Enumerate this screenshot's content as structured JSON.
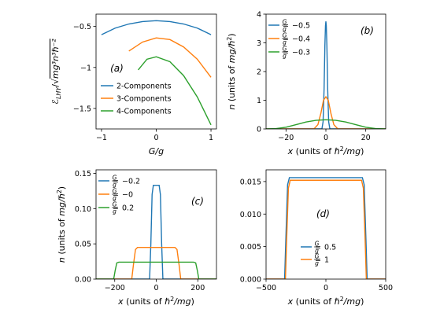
{
  "colors": {
    "blue": "#1f77b4",
    "orange": "#ff7f0e",
    "green": "#2ca02c"
  },
  "chart_data": [
    {
      "type": "line",
      "panel_label": "(a)",
      "xlabel": "G/g",
      "ylabel": "ℰ_LHY/√(mg³n³ℏ⁻²)",
      "ylabel_parts": {
        "main": "ℰ",
        "sub": "LHY",
        "rest": "/√",
        "radicand": "mg³n³ℏ⁻²"
      },
      "xlim": [
        -1.1,
        1.1
      ],
      "ylim": [
        -1.75,
        -0.35
      ],
      "xticks": [
        -1,
        0,
        1
      ],
      "yticks": [
        -1.5,
        -1.0,
        -0.5
      ],
      "legend_position": "lower-left",
      "series": [
        {
          "name": "2-Components",
          "color": "#1f77b4",
          "x": [
            -1,
            -0.75,
            -0.5,
            -0.25,
            0,
            0.25,
            0.5,
            0.75,
            1
          ],
          "y": [
            -0.6,
            -0.52,
            -0.47,
            -0.44,
            -0.43,
            -0.44,
            -0.47,
            -0.52,
            -0.6
          ]
        },
        {
          "name": "3-Components",
          "color": "#ff7f0e",
          "x": [
            -0.5,
            -0.25,
            0,
            0.25,
            0.5,
            0.75,
            1
          ],
          "y": [
            -0.8,
            -0.69,
            -0.64,
            -0.66,
            -0.75,
            -0.9,
            -1.12
          ]
        },
        {
          "name": "4-Components",
          "color": "#2ca02c",
          "x": [
            -0.33,
            -0.17,
            0,
            0.25,
            0.5,
            0.75,
            1
          ],
          "y": [
            -1.03,
            -0.9,
            -0.87,
            -0.93,
            -1.1,
            -1.36,
            -1.7
          ]
        }
      ]
    },
    {
      "type": "line",
      "panel_label": "(b)",
      "xlabel": "x (units of ℏ²/mg)",
      "ylabel": "n (units of mg/ℏ²)",
      "xlim": [
        -30,
        30
      ],
      "ylim": [
        0,
        4
      ],
      "xticks": [
        -20,
        0,
        20
      ],
      "yticks": [
        0,
        1,
        2,
        3,
        4
      ],
      "legend_position": "upper-left",
      "series": [
        {
          "value": "−0.5",
          "color": "#1f77b4",
          "x": [
            -30,
            -2,
            -1.4,
            -0.9,
            -0.5,
            -0.2,
            0,
            0.2,
            0.5,
            0.9,
            1.4,
            2,
            30
          ],
          "y": [
            0,
            0,
            0.25,
            1.4,
            2.9,
            3.6,
            3.75,
            3.6,
            2.9,
            1.4,
            0.25,
            0,
            0
          ]
        },
        {
          "value": "−0.4",
          "color": "#ff7f0e",
          "x": [
            -30,
            -6,
            -4,
            -2.5,
            -1.2,
            0,
            1.2,
            2.5,
            4,
            6,
            30
          ],
          "y": [
            0,
            0,
            0.15,
            0.55,
            1.0,
            1.12,
            1.0,
            0.55,
            0.15,
            0,
            0
          ]
        },
        {
          "value": "−0.3",
          "color": "#2ca02c",
          "x": [
            -30,
            -25,
            -20,
            -15,
            -10,
            -5,
            0,
            5,
            10,
            15,
            20,
            25,
            30
          ],
          "y": [
            0,
            0.01,
            0.06,
            0.15,
            0.24,
            0.3,
            0.32,
            0.3,
            0.24,
            0.15,
            0.06,
            0.01,
            0
          ]
        }
      ]
    },
    {
      "type": "line",
      "panel_label": "(c)",
      "xlabel": "x (units of ℏ²/mg)",
      "ylabel": "n (units of mg/ℏ²)",
      "xlim": [
        -290,
        290
      ],
      "ylim": [
        0,
        0.155
      ],
      "xticks": [
        -200,
        0,
        200
      ],
      "yticks": [
        0.0,
        0.05,
        0.1,
        0.15
      ],
      "ytick_labels": [
        "0.00",
        "0.05",
        "0.10",
        "0.15"
      ],
      "legend_position": "upper-left",
      "series": [
        {
          "value": "−0.2",
          "color": "#1f77b4",
          "x": [
            -290,
            -32,
            -26,
            -20,
            -14,
            14,
            20,
            26,
            32,
            290
          ],
          "y": [
            0,
            0,
            0.05,
            0.12,
            0.133,
            0.133,
            0.12,
            0.05,
            0,
            0
          ]
        },
        {
          "value": "−0",
          "color": "#ff7f0e",
          "x": [
            -290,
            -118,
            -110,
            -100,
            -90,
            90,
            100,
            110,
            118,
            290
          ],
          "y": [
            0,
            0,
            0.02,
            0.042,
            0.045,
            0.045,
            0.042,
            0.02,
            0,
            0
          ]
        },
        {
          "value": "0.2",
          "color": "#2ca02c",
          "x": [
            -290,
            -205,
            -198,
            -190,
            -180,
            180,
            190,
            198,
            205,
            290
          ],
          "y": [
            0,
            0,
            0.012,
            0.023,
            0.024,
            0.024,
            0.023,
            0.012,
            0,
            0
          ]
        }
      ]
    },
    {
      "type": "line",
      "panel_label": "(d)",
      "xlabel": "x (units of ℏ²/mg)",
      "ylabel": "",
      "xlim": [
        -500,
        500
      ],
      "ylim": [
        0,
        0.0168
      ],
      "xticks": [
        -500,
        0,
        500
      ],
      "yticks": [
        0.0,
        0.005,
        0.01,
        0.015
      ],
      "ytick_labels": [
        "0.000",
        "0.005",
        "0.010",
        "0.015"
      ],
      "legend_position": "lower-center",
      "series": [
        {
          "value": "0.5",
          "color": "#1f77b4",
          "x": [
            -500,
            -345,
            -335,
            -320,
            -305,
            305,
            320,
            335,
            345,
            500
          ],
          "y": [
            0,
            0,
            0.006,
            0.0145,
            0.0156,
            0.0156,
            0.0145,
            0.006,
            0,
            0
          ]
        },
        {
          "value": "1",
          "color": "#ff7f0e",
          "x": [
            -500,
            -338,
            -328,
            -313,
            -298,
            298,
            313,
            328,
            338,
            500
          ],
          "y": [
            0,
            0,
            0.006,
            0.014,
            0.0152,
            0.0152,
            0.014,
            0.006,
            0,
            0
          ]
        }
      ]
    }
  ]
}
